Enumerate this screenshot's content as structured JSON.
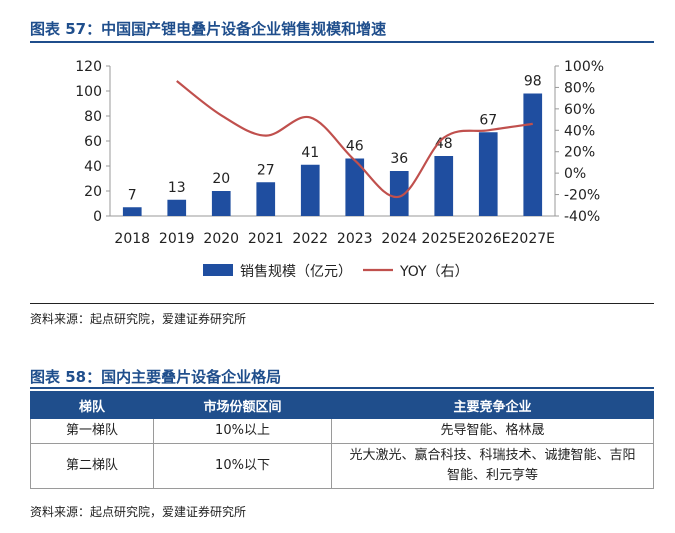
{
  "figure57": {
    "title": "图表 57：中国国产锂电叠片设备企业销售规模和增速",
    "source": "资料来源：起点研究院，爱建证券研究所"
  },
  "chart_data": {
    "type": "bar",
    "categories": [
      "2018",
      "2019",
      "2020",
      "2021",
      "2022",
      "2023",
      "2024",
      "2025E",
      "2026E",
      "2027E"
    ],
    "series": [
      {
        "name": "销售规模（亿元）",
        "kind": "bar",
        "axis": "left",
        "values": [
          7,
          13,
          20,
          27,
          41,
          46,
          36,
          48,
          67,
          98
        ],
        "color": "#1f4ea0"
      },
      {
        "name": "YOY（右）",
        "kind": "line",
        "axis": "right",
        "values": [
          null,
          86,
          54,
          35,
          52,
          12,
          -22,
          33,
          40,
          46
        ],
        "color": "#c0504d"
      }
    ],
    "y_left": {
      "ylim": [
        0,
        120
      ],
      "ticks": [
        0,
        20,
        40,
        60,
        80,
        100,
        120
      ]
    },
    "y_right": {
      "ylim": [
        -40,
        100
      ],
      "ticks": [
        "-40%",
        "-20%",
        "0%",
        "20%",
        "40%",
        "60%",
        "80%",
        "100%"
      ]
    },
    "legend_position": "bottom"
  },
  "figure58": {
    "title": "图表 58：国内主要叠片设备企业格局",
    "headers": [
      "梯队",
      "市场份额区间",
      "主要竞争企业"
    ],
    "rows": [
      {
        "tier": "第一梯队",
        "share": "10%以上",
        "companies": "先导智能、格林晟"
      },
      {
        "tier": "第二梯队",
        "share": "10%以下",
        "companies": "光大激光、赢合科技、科瑞技术、诚捷智能、吉阳智能、利元亨等"
      }
    ],
    "source": "资料来源：起点研究院，爱建证券研究所"
  }
}
